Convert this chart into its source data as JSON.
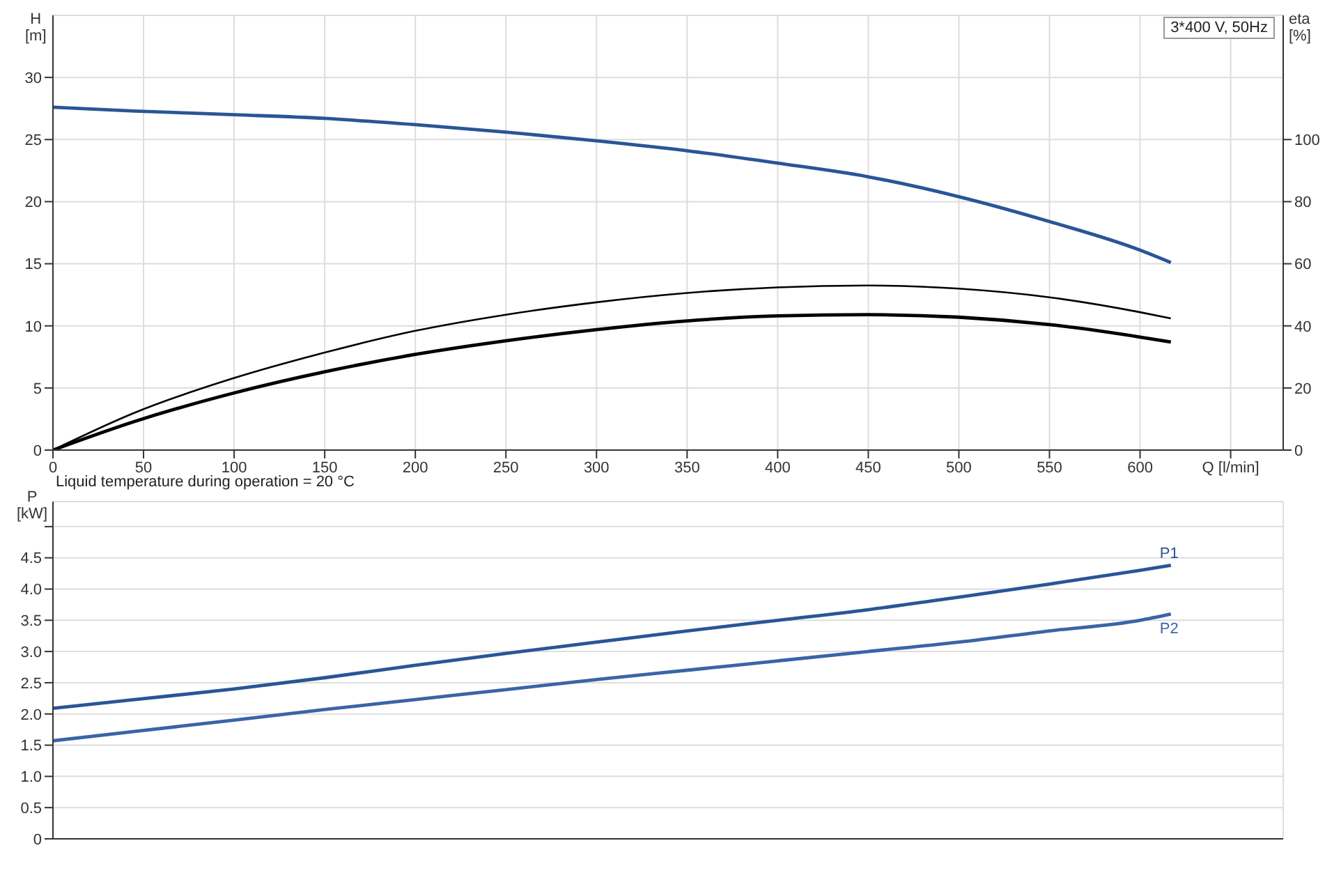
{
  "chart_data": [
    {
      "type": "line",
      "ylabel": "H [m]",
      "y2label": "eta [%]",
      "annotations": [
        "3*400 V, 50Hz"
      ],
      "xlim": [
        0,
        679
      ],
      "xticks": [
        0,
        50,
        100,
        150,
        200,
        250,
        300,
        350,
        400,
        450,
        500,
        550,
        600,
        {
          "value": 650,
          "label": "Q [l/min]"
        }
      ],
      "ylim": [
        0,
        35
      ],
      "yticks": [
        0,
        5,
        10,
        15,
        20,
        25,
        30
      ],
      "y2lim": [
        0,
        140
      ],
      "y2ticks": [
        0,
        20,
        40,
        60,
        80,
        100
      ],
      "grid": true,
      "legend": false,
      "marker": "none",
      "line_style": "solid",
      "series": [
        {
          "color": "#2a5597",
          "x": [
            0,
            45,
            100,
            150,
            200,
            250,
            300,
            350,
            400,
            450,
            500,
            550,
            600,
            617
          ],
          "values": [
            27.6,
            27.3,
            27.0,
            26.7,
            26.2,
            25.6,
            24.9,
            24.1,
            23.1,
            22.0,
            20.4,
            18.4,
            16.1,
            15.1
          ]
        },
        {
          "color": "#000000",
          "axis": "y2",
          "x": [
            0,
            45,
            100,
            150,
            200,
            250,
            300,
            350,
            400,
            450,
            500,
            550,
            600,
            617
          ],
          "values": [
            0,
            12,
            23.2,
            31.4,
            38.4,
            43.6,
            47.6,
            50.6,
            52.4,
            53,
            52,
            49.2,
            44.4,
            42.4
          ]
        },
        {
          "color": "#000000",
          "axis": "y2",
          "x": [
            0,
            45,
            100,
            150,
            200,
            250,
            300,
            350,
            400,
            450,
            500,
            550,
            600,
            617
          ],
          "values": [
            0,
            9.2,
            18.4,
            25.2,
            30.8,
            35.2,
            38.8,
            41.6,
            43.2,
            43.6,
            42.8,
            40.4,
            36.4,
            34.8
          ]
        }
      ]
    },
    {
      "type": "line",
      "ylabel": "P [kW]",
      "annotations": [
        "Liquid temperature during operation = 20 °C"
      ],
      "xlim": [
        0,
        679
      ],
      "xticks": [
        0,
        50,
        100,
        150,
        200,
        250,
        300,
        350,
        400,
        450,
        500,
        550,
        600,
        650
      ],
      "ylim": [
        0,
        5.4
      ],
      "yticks": [
        0,
        0.5,
        {
          "value": 1,
          "label": "1.0"
        },
        1.5,
        {
          "value": 2,
          "label": "2.0"
        },
        2.5,
        {
          "value": 3,
          "label": "3.0"
        },
        3.5,
        {
          "value": 4,
          "label": "4.0"
        },
        4.5,
        {
          "value": 5,
          "label": null
        }
      ],
      "tick_labels": "y",
      "grid": true,
      "legend": false,
      "marker": "none",
      "line_style": "solid",
      "series": [
        {
          "name": "P1",
          "color": "#2a5597",
          "x": [
            0,
            45,
            100,
            150,
            200,
            250,
            300,
            350,
            400,
            450,
            500,
            550,
            600,
            617
          ],
          "values": [
            2.09,
            2.23,
            2.4,
            2.58,
            2.78,
            2.97,
            3.15,
            3.33,
            3.5,
            3.67,
            3.87,
            4.08,
            4.3,
            4.38
          ]
        },
        {
          "name": "P2",
          "color": "#3a64a8",
          "x": [
            0,
            45,
            100,
            150,
            200,
            250,
            300,
            350,
            400,
            450,
            500,
            550,
            600,
            617
          ],
          "values": [
            1.57,
            1.72,
            1.9,
            2.07,
            2.23,
            2.39,
            2.55,
            2.7,
            2.85,
            3.0,
            3.15,
            3.33,
            3.5,
            3.6
          ]
        }
      ]
    }
  ]
}
